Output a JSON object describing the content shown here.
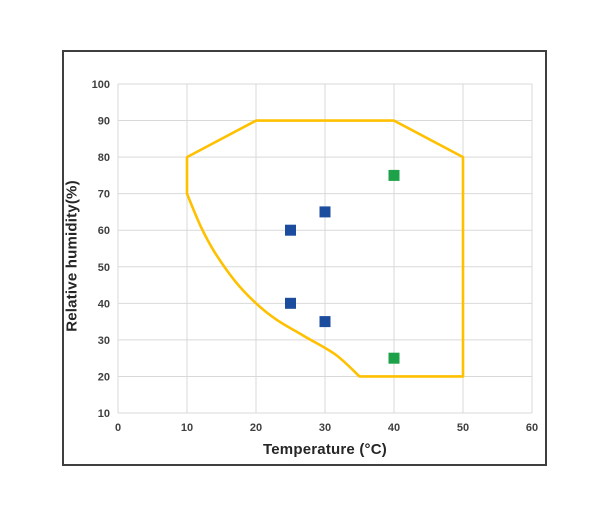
{
  "figure": {
    "background_color": "#ffffff",
    "frame_color": "#3f3f3f",
    "plot_background_color": "#ffffff"
  },
  "chart_data": {
    "type": "scatter",
    "title": "",
    "xlabel": "Temperature (°C)",
    "ylabel": "Relative humidity(%)",
    "xlim": [
      0,
      60
    ],
    "ylim": [
      10,
      100
    ],
    "xticks": [
      0,
      10,
      20,
      30,
      40,
      50,
      60
    ],
    "yticks": [
      10,
      20,
      30,
      40,
      50,
      60,
      70,
      80,
      90,
      100
    ],
    "grid": true,
    "grid_color": "#d9d9d9",
    "tick_label_color": "#404040",
    "legend": "none",
    "series": [
      {
        "name": "blue-squares",
        "marker": "square",
        "color": "#1c4c9e",
        "marker_size": 11,
        "points": [
          [
            25,
            60
          ],
          [
            30,
            65
          ],
          [
            25,
            40
          ],
          [
            30,
            35
          ]
        ]
      },
      {
        "name": "green-squares",
        "marker": "square",
        "color": "#1da149",
        "marker_size": 11,
        "points": [
          [
            40,
            75
          ],
          [
            40,
            25
          ]
        ]
      }
    ],
    "envelope": {
      "name": "operating-envelope-outline",
      "color": "#ffc000",
      "stroke_width": 2.6,
      "closed": true,
      "straight_path": [
        [
          10,
          70
        ],
        [
          10,
          80
        ],
        [
          20,
          90
        ],
        [
          40,
          90
        ],
        [
          50,
          80
        ],
        [
          50,
          20
        ],
        [
          35,
          20
        ]
      ],
      "curved_path": [
        [
          35,
          20
        ],
        [
          31.5,
          26
        ],
        [
          27,
          31
        ],
        [
          23,
          35.5
        ],
        [
          20,
          40
        ],
        [
          17,
          46
        ],
        [
          14,
          54
        ],
        [
          12,
          61
        ],
        [
          10,
          70
        ]
      ]
    }
  }
}
